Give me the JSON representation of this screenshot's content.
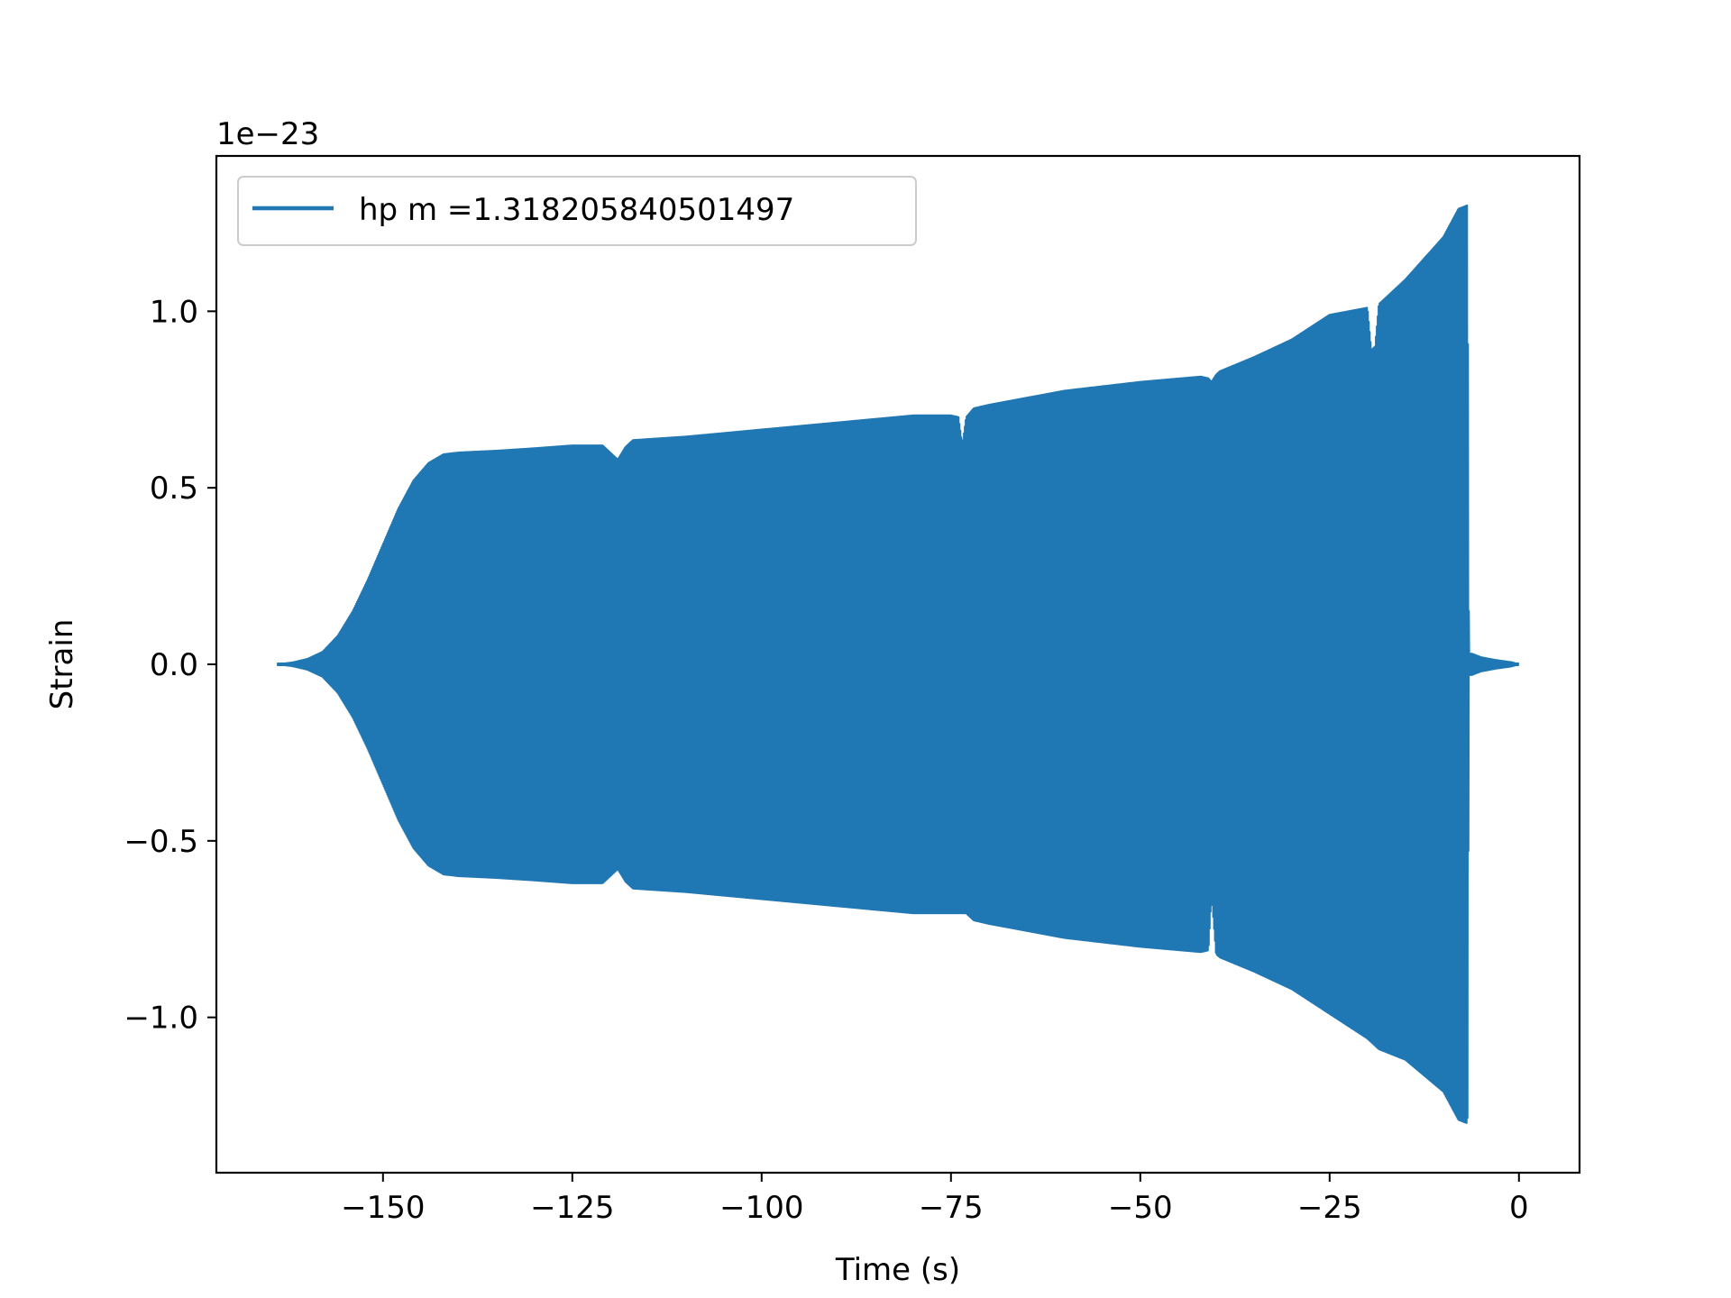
{
  "chart_data": {
    "type": "line",
    "title": "",
    "xlabel": "Time (s)",
    "ylabel": "Strain",
    "y_offset_label": "1e−23",
    "xlim": [
      -172,
      8
    ],
    "ylim": [
      -1.44,
      1.44
    ],
    "xticks": [
      -150,
      -125,
      -100,
      -75,
      -50,
      -25,
      0
    ],
    "xtick_labels": [
      "−150",
      "−125",
      "−100",
      "−75",
      "−50",
      "−25",
      "0"
    ],
    "yticks": [
      -1.0,
      -0.5,
      0.0,
      0.5,
      1.0
    ],
    "ytick_labels": [
      "−1.0",
      "−0.5",
      "0.0",
      "0.5",
      "1.0"
    ],
    "grid": false,
    "legend_position": "upper-left",
    "series": [
      {
        "name": "hp m =1.318205840501497",
        "color": "#1f77b4",
        "render": "oscillating-filled",
        "x_start": -164,
        "x_end": 0,
        "envelope": {
          "x": [
            -164,
            -162,
            -160,
            -158,
            -156,
            -154,
            -152,
            -150,
            -148,
            -146,
            -144,
            -142,
            -140,
            -135,
            -130,
            -125,
            -121,
            -120,
            -119,
            -118,
            -117,
            -110,
            -100,
            -90,
            -80,
            -75,
            -74,
            -73.5,
            -73,
            -72,
            -70,
            -60,
            -50,
            -42,
            -41,
            -40.6,
            -40,
            -39.5,
            -35,
            -30,
            -25,
            -20,
            -19.5,
            -19,
            -18.5,
            -15,
            -10,
            -8,
            -6.8,
            -6.6,
            -6.2,
            -5,
            -3,
            -1,
            0
          ],
          "upper": [
            0.0,
            0.005,
            0.015,
            0.035,
            0.08,
            0.15,
            0.24,
            0.34,
            0.44,
            0.52,
            0.57,
            0.595,
            0.6,
            0.605,
            0.612,
            0.62,
            0.62,
            0.6,
            0.58,
            0.615,
            0.635,
            0.645,
            0.665,
            0.685,
            0.705,
            0.705,
            0.7,
            0.62,
            0.7,
            0.725,
            0.735,
            0.775,
            0.8,
            0.815,
            0.81,
            0.8,
            0.82,
            0.83,
            0.87,
            0.92,
            0.99,
            1.01,
            0.89,
            0.9,
            1.02,
            1.09,
            1.21,
            1.29,
            1.3,
            0.03,
            0.03,
            0.02,
            0.012,
            0.006,
            0.0
          ],
          "lower": [
            0.0,
            -0.005,
            -0.015,
            -0.035,
            -0.08,
            -0.15,
            -0.24,
            -0.34,
            -0.44,
            -0.52,
            -0.57,
            -0.595,
            -0.6,
            -0.605,
            -0.612,
            -0.62,
            -0.62,
            -0.6,
            -0.58,
            -0.615,
            -0.635,
            -0.645,
            -0.665,
            -0.685,
            -0.705,
            -0.705,
            -0.705,
            -0.705,
            -0.705,
            -0.725,
            -0.735,
            -0.775,
            -0.8,
            -0.815,
            -0.81,
            -0.65,
            -0.82,
            -0.83,
            -0.87,
            -0.92,
            -0.99,
            -1.06,
            -1.07,
            -1.08,
            -1.09,
            -1.12,
            -1.21,
            -1.29,
            -1.3,
            -0.03,
            -0.03,
            -0.02,
            -0.012,
            -0.006,
            0.0
          ]
        }
      }
    ]
  }
}
